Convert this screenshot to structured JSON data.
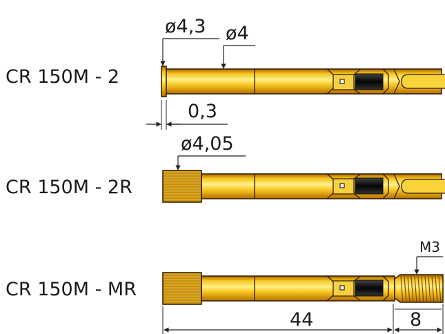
{
  "products": [
    {
      "model": "CR 150M - 2",
      "dimensions": {
        "head_diameter": "ø4,3",
        "shaft_diameter": "ø4",
        "head_length": "0,3"
      }
    },
    {
      "model": "CR 150M - 2R",
      "dimensions": {
        "head_diameter": "ø4,05"
      }
    },
    {
      "model": "CR 150M - MR",
      "dimensions": {
        "thread": "M3",
        "body_length": "44",
        "thread_length": "8"
      }
    }
  ],
  "colors": {
    "gold_light": "#fff08a",
    "gold_mid": "#f2bc18",
    "gold_dark": "#c07a00",
    "outline": "#2a1a00",
    "slot": "#111111"
  }
}
